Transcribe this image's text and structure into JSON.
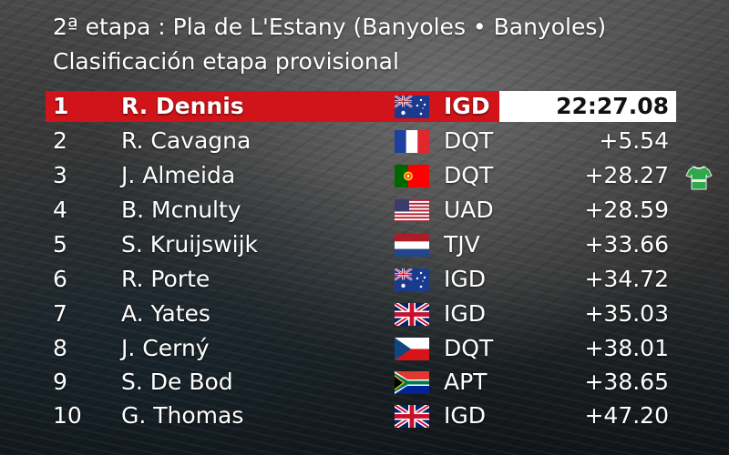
{
  "header": {
    "title": "2ª etapa : Pla de L'Estany (Banyoles • Banyoles)",
    "subtitle": "Clasificación etapa provisional"
  },
  "colors": {
    "leader_bar": "#d0141a",
    "jersey": "#2ea84a"
  },
  "standings": [
    {
      "pos": "1",
      "name": "R. Dennis",
      "flag": "australia-flag",
      "team": "IGD",
      "time": "22:27.08"
    },
    {
      "pos": "2",
      "name": "R. Cavagna",
      "flag": "france-flag",
      "team": "DQT",
      "time": "+5.54"
    },
    {
      "pos": "3",
      "name": "J. Almeida",
      "flag": "portugal-flag",
      "team": "DQT",
      "time": "+28.27",
      "jersey": "green-jersey-icon"
    },
    {
      "pos": "4",
      "name": "B. Mcnulty",
      "flag": "usa-flag",
      "team": "UAD",
      "time": "+28.59"
    },
    {
      "pos": "5",
      "name": "S. Kruijswijk",
      "flag": "netherlands-flag",
      "team": "TJV",
      "time": "+33.66"
    },
    {
      "pos": "6",
      "name": "R. Porte",
      "flag": "australia-flag",
      "team": "IGD",
      "time": "+34.72"
    },
    {
      "pos": "7",
      "name": "A. Yates",
      "flag": "uk-flag",
      "team": "IGD",
      "time": "+35.03"
    },
    {
      "pos": "8",
      "name": "J. Cerný",
      "flag": "czech-flag",
      "team": "DQT",
      "time": "+38.01"
    },
    {
      "pos": "9",
      "name": "S. De Bod",
      "flag": "south-africa-flag",
      "team": "APT",
      "time": "+38.65"
    },
    {
      "pos": "10",
      "name": "G. Thomas",
      "flag": "uk-flag",
      "team": "IGD",
      "time": "+47.20"
    }
  ]
}
